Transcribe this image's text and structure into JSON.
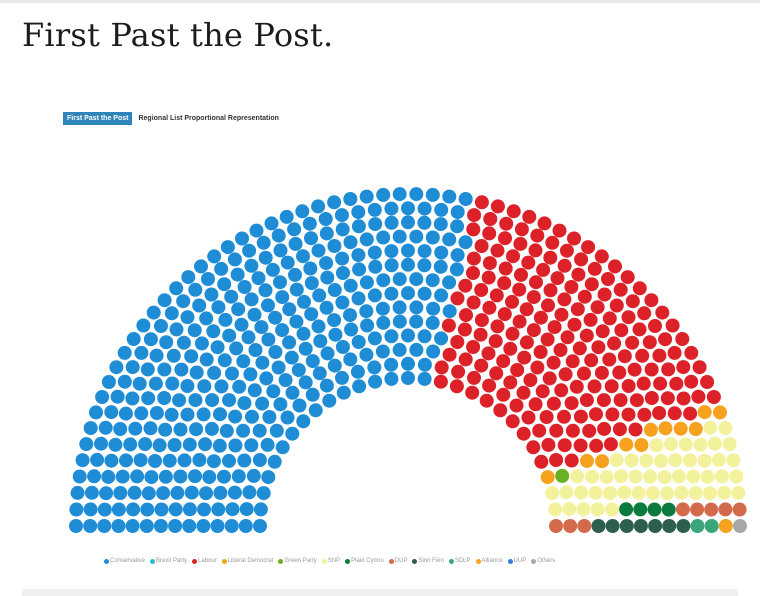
{
  "page": {
    "title": "First Past the Post."
  },
  "tabs": [
    {
      "label": "First Past the Post",
      "active": true
    },
    {
      "label": "Regional List Proportional Representation",
      "active": false
    }
  ],
  "chart_data": {
    "type": "parliament",
    "title": "",
    "total_seats": 650,
    "series": [
      {
        "name": "Conservative",
        "color": "#1f8dd6",
        "values": [
          365
        ]
      },
      {
        "name": "Brexit Party",
        "color": "#2bbbd8",
        "values": [
          0
        ]
      },
      {
        "name": "Labour",
        "color": "#dc2128",
        "values": [
          202
        ]
      },
      {
        "name": "Liberal Democrat",
        "color": "#f6a21e",
        "values": [
          11
        ]
      },
      {
        "name": "Green Party",
        "color": "#6ab023",
        "values": [
          1
        ]
      },
      {
        "name": "SNP",
        "color": "#f4f19c",
        "values": [
          48
        ]
      },
      {
        "name": "Plaid Cymru",
        "color": "#0b7a3e",
        "values": [
          4
        ]
      },
      {
        "name": "DUP",
        "color": "#d46a4c",
        "values": [
          8
        ]
      },
      {
        "name": "Sinn Féin",
        "color": "#2e5e4e",
        "values": [
          7
        ]
      },
      {
        "name": "SDLP",
        "color": "#3aa57a",
        "values": [
          2
        ]
      },
      {
        "name": "Alliance",
        "color": "#f6a21e",
        "values": [
          1
        ]
      },
      {
        "name": "UUP",
        "color": "#2f7fd8",
        "values": [
          0
        ]
      },
      {
        "name": "Others",
        "color": "#a7a7a7",
        "values": [
          1
        ]
      }
    ],
    "legend_position": "bottom"
  }
}
